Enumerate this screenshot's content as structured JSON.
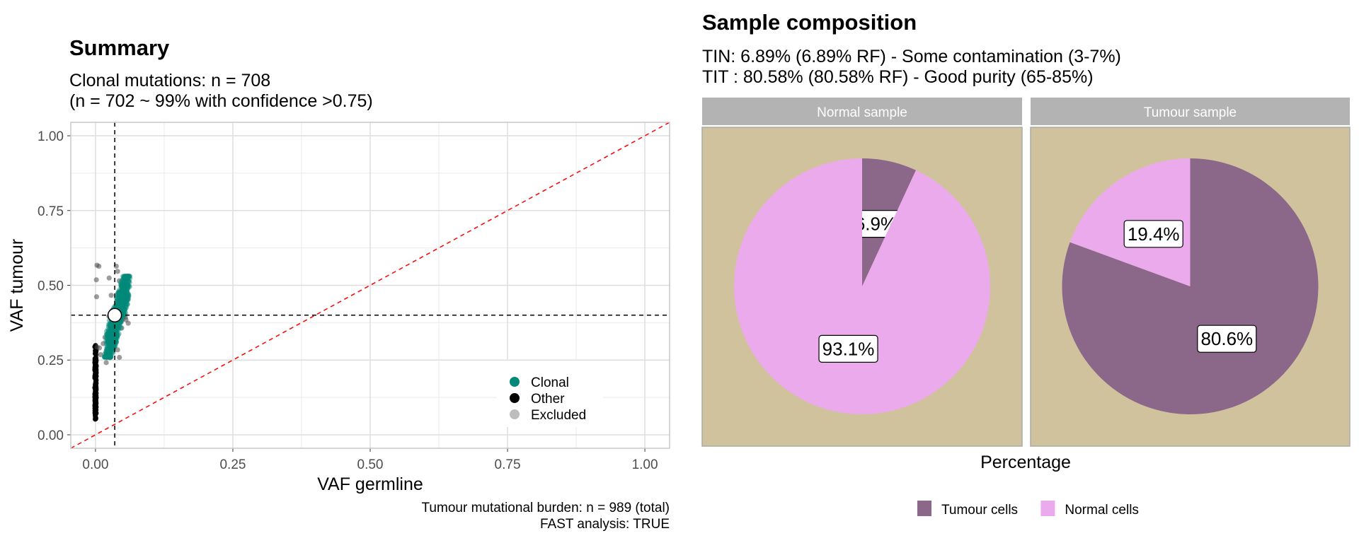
{
  "left_panel": {
    "title": "Summary",
    "subtitle_1": "Clonal mutations: n = 708",
    "subtitle_2": "(n = 702 ~ 99% with confidence >0.75)",
    "caption_1": "Tumour mutational burden: n = 989 (total)",
    "caption_2": "FAST analysis: TRUE"
  },
  "right_panel": {
    "title": "Sample composition",
    "subtitle_1": "TIN: 6.89% (6.89% RF) - Some contamination (3-7%)",
    "subtitle_2": "TIT : 80.58% (80.58% RF) - Good purity (65-85%)",
    "xlabel": "Percentage"
  },
  "chart_data": [
    {
      "type": "scatter",
      "title": "Summary",
      "xlabel": "VAF germline",
      "ylabel": "VAF tumour",
      "xlim": [
        -0.045,
        1.045
      ],
      "ylim": [
        -0.045,
        1.045
      ],
      "x_ticks": [
        "0.00",
        "0.25",
        "0.50",
        "0.75",
        "1.00"
      ],
      "y_ticks": [
        "0.00",
        "0.25",
        "0.50",
        "0.75",
        "1.00"
      ],
      "grid": true,
      "legend_position": "inside-bottom-right",
      "series": [
        {
          "name": "Clonal",
          "color": "#00897B",
          "x_range": [
            0.02,
            0.06
          ],
          "y_range": [
            0.27,
            0.52
          ],
          "n": 708
        },
        {
          "name": "Other",
          "color": "#000000",
          "x": 0.0,
          "y_range": [
            0.05,
            0.3
          ]
        },
        {
          "name": "Excluded",
          "color": "#9E9E9E",
          "x_range": [
            0.0,
            0.06
          ],
          "y_range": [
            0.24,
            0.57
          ]
        }
      ],
      "reference_lines": [
        {
          "type": "vline",
          "x": 0.035,
          "style": "dashed",
          "color": "#000000"
        },
        {
          "type": "hline",
          "y": 0.4,
          "style": "dashed",
          "color": "#000000"
        },
        {
          "type": "diagonal",
          "slope": 1,
          "intercept": 0,
          "style": "dashed",
          "color": "#FF0000"
        }
      ],
      "centroid": {
        "x": 0.035,
        "y": 0.4
      }
    },
    {
      "type": "pie",
      "xlabel": "Percentage",
      "legend": [
        {
          "label": "Tumour cells",
          "color": "#8B6789"
        },
        {
          "label": "Normal cells",
          "color": "#EBAAEB"
        }
      ],
      "panel_background": "#D1C29E",
      "facets": [
        {
          "name": "Normal sample",
          "slices": [
            {
              "label": "Tumour cells",
              "value": 6.9,
              "text": "6.9%"
            },
            {
              "label": "Normal cells",
              "value": 93.1,
              "text": "93.1%"
            }
          ]
        },
        {
          "name": "Tumour sample",
          "slices": [
            {
              "label": "Tumour cells",
              "value": 80.6,
              "text": "80.6%"
            },
            {
              "label": "Normal cells",
              "value": 19.4,
              "text": "19.4%"
            }
          ]
        }
      ]
    }
  ]
}
